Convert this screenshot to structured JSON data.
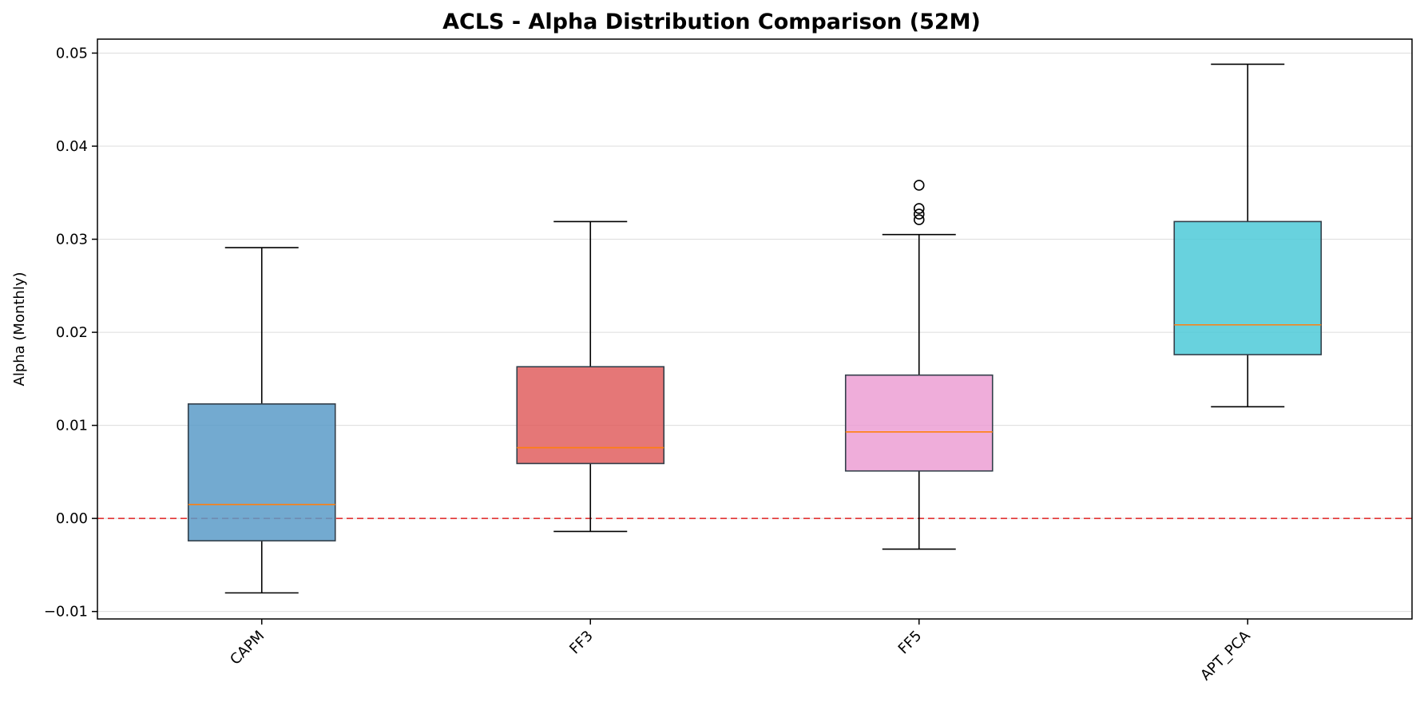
{
  "chart_data": {
    "type": "box",
    "title": "ACLS - Alpha Distribution Comparison (52M)",
    "xlabel": "",
    "ylabel": "Alpha (Monthly)",
    "ylim": [
      -0.0108,
      0.0515
    ],
    "yticks": [
      -0.01,
      0.0,
      0.01,
      0.02,
      0.03,
      0.04,
      0.05
    ],
    "ytick_labels": [
      "−0.01",
      "0.00",
      "0.01",
      "0.02",
      "0.03",
      "0.04",
      "0.05"
    ],
    "grid": "y",
    "reference_line": {
      "y": 0.0,
      "color": "#e02020",
      "style": "dashed"
    },
    "categories": [
      "CAPM",
      "FF3",
      "FF5",
      "APT_PCA"
    ],
    "series": [
      {
        "category": "CAPM",
        "whisker_low": -0.008,
        "q1": -0.0024,
        "median": 0.0015,
        "q3": 0.0123,
        "whisker_high": 0.0291,
        "outliers": [],
        "color": "#5a9bc8"
      },
      {
        "category": "FF3",
        "whisker_low": -0.0014,
        "q1": 0.0059,
        "median": 0.0076,
        "q3": 0.0163,
        "whisker_high": 0.0319,
        "outliers": [],
        "color": "#e05f5f"
      },
      {
        "category": "FF5",
        "whisker_low": -0.0033,
        "q1": 0.0051,
        "median": 0.0093,
        "q3": 0.0154,
        "whisker_high": 0.0305,
        "outliers": [
          0.0358,
          0.0333,
          0.0327,
          0.0321
        ],
        "color": "#ec9fd4"
      },
      {
        "category": "APT_PCA",
        "whisker_low": 0.012,
        "q1": 0.0176,
        "median": 0.0208,
        "q3": 0.0319,
        "whisker_high": 0.0488,
        "outliers": [],
        "color": "#4dcad8"
      }
    ]
  }
}
